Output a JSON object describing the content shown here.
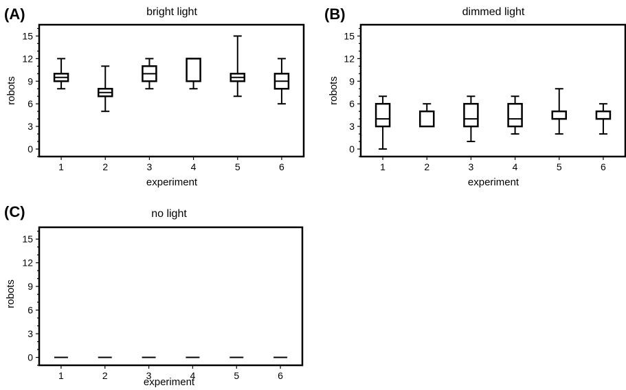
{
  "chart_data": [
    {
      "type": "box",
      "panel": "(A)",
      "title": "bright light",
      "xlabel": "experiment",
      "ylabel": "robots",
      "ylim": [
        -1,
        16.5
      ],
      "yticks": [
        0,
        3,
        6,
        9,
        12,
        15
      ],
      "categories": [
        "1",
        "2",
        "3",
        "4",
        "5",
        "6"
      ],
      "boxes": [
        {
          "min": 8,
          "q1": 9,
          "median": 9.5,
          "q3": 10,
          "max": 12
        },
        {
          "min": 5,
          "q1": 7,
          "median": 7.5,
          "q3": 8,
          "max": 11
        },
        {
          "min": 8,
          "q1": 9,
          "median": 10,
          "q3": 11,
          "max": 12
        },
        {
          "min": 8,
          "q1": 9,
          "median": 12,
          "q3": 12,
          "max": 12
        },
        {
          "min": 7,
          "q1": 9,
          "median": 9.5,
          "q3": 10,
          "max": 15
        },
        {
          "min": 6,
          "q1": 8,
          "median": 9,
          "q3": 10,
          "max": 12
        }
      ]
    },
    {
      "type": "box",
      "panel": "(B)",
      "title": "dimmed light",
      "xlabel": "experiment",
      "ylabel": "robots",
      "ylim": [
        -1,
        16.5
      ],
      "yticks": [
        0,
        3,
        6,
        9,
        12,
        15
      ],
      "categories": [
        "1",
        "2",
        "3",
        "4",
        "5",
        "6"
      ],
      "boxes": [
        {
          "min": 0,
          "q1": 3,
          "median": 4,
          "q3": 6,
          "max": 7
        },
        {
          "min": 3,
          "q1": 3,
          "median": 5,
          "q3": 5,
          "max": 6
        },
        {
          "min": 1,
          "q1": 3,
          "median": 4,
          "q3": 6,
          "max": 7
        },
        {
          "min": 2,
          "q1": 3,
          "median": 4,
          "q3": 6,
          "max": 7
        },
        {
          "min": 2,
          "q1": 4,
          "median": 5,
          "q3": 5,
          "max": 8
        },
        {
          "min": 2,
          "q1": 4,
          "median": 5,
          "q3": 5,
          "max": 6
        }
      ]
    },
    {
      "type": "box",
      "panel": "(C)",
      "title": "no light",
      "xlabel": "experiment",
      "ylabel": "robots",
      "ylim": [
        -1,
        16.5
      ],
      "yticks": [
        0,
        3,
        6,
        9,
        12,
        15
      ],
      "categories": [
        "1",
        "2",
        "3",
        "4",
        "5",
        "6"
      ],
      "boxes": [
        {
          "min": 0,
          "q1": 0,
          "median": 0,
          "q3": 0,
          "max": 0
        },
        {
          "min": 0,
          "q1": 0,
          "median": 0,
          "q3": 0,
          "max": 0
        },
        {
          "min": 0,
          "q1": 0,
          "median": 0,
          "q3": 0,
          "max": 0
        },
        {
          "min": 0,
          "q1": 0,
          "median": 0,
          "q3": 0,
          "max": 0
        },
        {
          "min": 0,
          "q1": 0,
          "median": 0,
          "q3": 0,
          "max": 0
        },
        {
          "min": 0,
          "q1": 0,
          "median": 0,
          "q3": 0,
          "max": 0
        }
      ]
    }
  ]
}
